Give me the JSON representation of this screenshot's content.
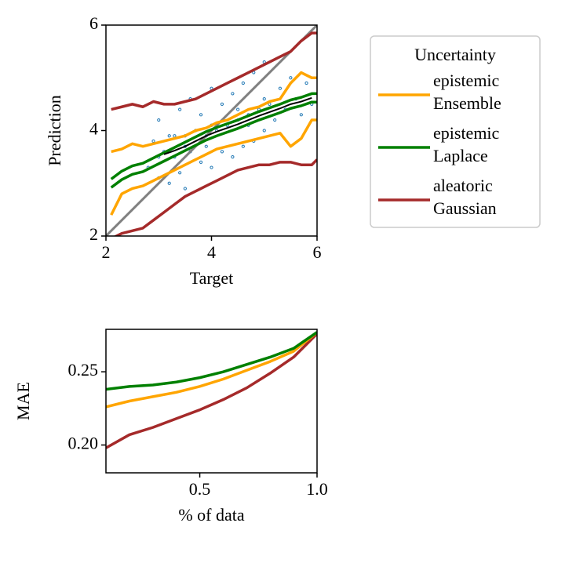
{
  "chart_data": [
    {
      "type": "line",
      "y_label": "Prediction",
      "x_label": "Target",
      "xlim": [
        2,
        6
      ],
      "ylim": [
        2,
        6
      ],
      "xticks": [
        2,
        4,
        6
      ],
      "yticks": [
        2,
        4,
        6
      ],
      "x": [
        2.1,
        2.3,
        2.5,
        2.7,
        2.9,
        3.1,
        3.3,
        3.5,
        3.7,
        3.9,
        4.1,
        4.3,
        4.5,
        4.7,
        4.9,
        5.1,
        5.3,
        5.5,
        5.7,
        5.9,
        6.0
      ],
      "scatter": {
        "color": "#1f77b4",
        "x": [
          2.8,
          2.9,
          3.0,
          3.0,
          3.1,
          3.2,
          3.2,
          3.3,
          3.4,
          3.4,
          3.5,
          3.5,
          3.6,
          3.6,
          3.7,
          3.8,
          3.8,
          3.9,
          4.0,
          4.0,
          4.1,
          4.2,
          4.2,
          4.3,
          4.4,
          4.4,
          4.5,
          4.6,
          4.6,
          4.7,
          4.8,
          4.8,
          4.9,
          5.0,
          5.0,
          5.1,
          5.2,
          5.3,
          5.4,
          5.5,
          5.6,
          5.7,
          5.8,
          5.9,
          3.0,
          3.5,
          4.0,
          4.5,
          5.0,
          3.3,
          3.9,
          4.7
        ],
        "y": [
          3.3,
          3.8,
          3.1,
          4.2,
          3.6,
          3.9,
          3.0,
          3.5,
          4.4,
          3.2,
          3.9,
          2.9,
          3.6,
          4.6,
          4.0,
          3.4,
          4.3,
          3.9,
          4.8,
          3.3,
          4.0,
          4.5,
          3.6,
          4.1,
          3.5,
          4.7,
          4.2,
          4.9,
          3.7,
          4.3,
          3.8,
          5.1,
          4.4,
          4.0,
          5.3,
          4.5,
          4.2,
          4.8,
          4.4,
          5.0,
          4.6,
          4.3,
          4.9,
          4.5,
          3.5,
          3.7,
          4.1,
          4.4,
          4.6,
          3.9,
          3.7,
          4.1
        ]
      },
      "reference_line": {
        "color": "#808080"
      },
      "series": [
        {
          "kind": "epistemic",
          "name": "Ensemble",
          "color": "#ffa500",
          "upper": [
            3.6,
            3.65,
            3.75,
            3.7,
            3.75,
            3.8,
            3.85,
            3.9,
            4.0,
            4.05,
            4.15,
            4.2,
            4.3,
            4.4,
            4.45,
            4.55,
            4.6,
            4.9,
            5.1,
            5.0,
            5.0
          ],
          "lower": [
            2.4,
            2.8,
            2.9,
            2.95,
            3.05,
            3.15,
            3.25,
            3.35,
            3.45,
            3.55,
            3.65,
            3.7,
            3.75,
            3.8,
            3.85,
            3.9,
            3.95,
            3.7,
            3.85,
            4.2,
            4.2
          ]
        },
        {
          "kind": "epistemic",
          "name": "Laplace",
          "color": "#008000",
          "upper": [
            3.08,
            3.23,
            3.33,
            3.38,
            3.48,
            3.58,
            3.68,
            3.78,
            3.88,
            3.98,
            4.06,
            4.13,
            4.2,
            4.28,
            4.36,
            4.43,
            4.5,
            4.58,
            4.63,
            4.7,
            4.7
          ],
          "lower": [
            2.92,
            3.07,
            3.17,
            3.22,
            3.32,
            3.42,
            3.52,
            3.62,
            3.72,
            3.82,
            3.9,
            3.97,
            4.04,
            4.12,
            4.2,
            4.27,
            4.34,
            4.42,
            4.47,
            4.54,
            4.54
          ]
        },
        {
          "kind": "aleatoric",
          "name": "Gaussian",
          "color": "#a52a2a",
          "upper": [
            4.4,
            4.45,
            4.5,
            4.45,
            4.55,
            4.5,
            4.5,
            4.55,
            4.6,
            4.7,
            4.8,
            4.9,
            5.0,
            5.1,
            5.2,
            5.3,
            5.4,
            5.5,
            5.7,
            5.85,
            5.85
          ],
          "lower": [
            1.95,
            2.05,
            2.1,
            2.15,
            2.3,
            2.45,
            2.6,
            2.75,
            2.85,
            2.95,
            3.05,
            3.15,
            3.25,
            3.3,
            3.35,
            3.35,
            3.4,
            3.4,
            3.35,
            3.35,
            3.45
          ]
        }
      ],
      "mean_line": {
        "color": "#000000",
        "x": [
          3.1,
          3.3,
          3.5,
          3.7,
          3.9,
          4.1,
          4.3,
          4.5,
          4.7,
          4.9,
          5.1,
          5.3,
          5.5,
          5.7,
          5.9
        ],
        "values": [
          3.55,
          3.62,
          3.7,
          3.8,
          3.9,
          3.98,
          4.05,
          4.12,
          4.2,
          4.28,
          4.35,
          4.42,
          4.5,
          4.55,
          4.62
        ]
      },
      "legend": {
        "title": "Uncertainty",
        "position": "outside right"
      }
    },
    {
      "type": "line",
      "y_label": "MAE",
      "x_label": "% of data",
      "xlim": [
        0.1,
        1.0
      ],
      "ylim": [
        0.181,
        0.279
      ],
      "xticks": [
        0.5,
        {
          "value": 1.0,
          "label": "1.0"
        }
      ],
      "yticks": [
        {
          "value": 0.2,
          "label": "0.20"
        },
        0.25
      ],
      "x": [
        0.1,
        0.2,
        0.3,
        0.4,
        0.5,
        0.6,
        0.7,
        0.8,
        0.9,
        1.0
      ],
      "series": [
        {
          "color": "#a52a2a",
          "values": [
            0.198,
            0.207,
            0.212,
            0.218,
            0.224,
            0.231,
            0.239,
            0.249,
            0.26,
            0.276
          ]
        },
        {
          "color": "#ffa500",
          "values": [
            0.226,
            0.23,
            0.233,
            0.236,
            0.24,
            0.245,
            0.251,
            0.257,
            0.264,
            0.277
          ]
        },
        {
          "color": "#008000",
          "values": [
            0.238,
            0.24,
            0.241,
            0.243,
            0.246,
            0.25,
            0.255,
            0.26,
            0.266,
            0.277
          ]
        }
      ]
    }
  ]
}
